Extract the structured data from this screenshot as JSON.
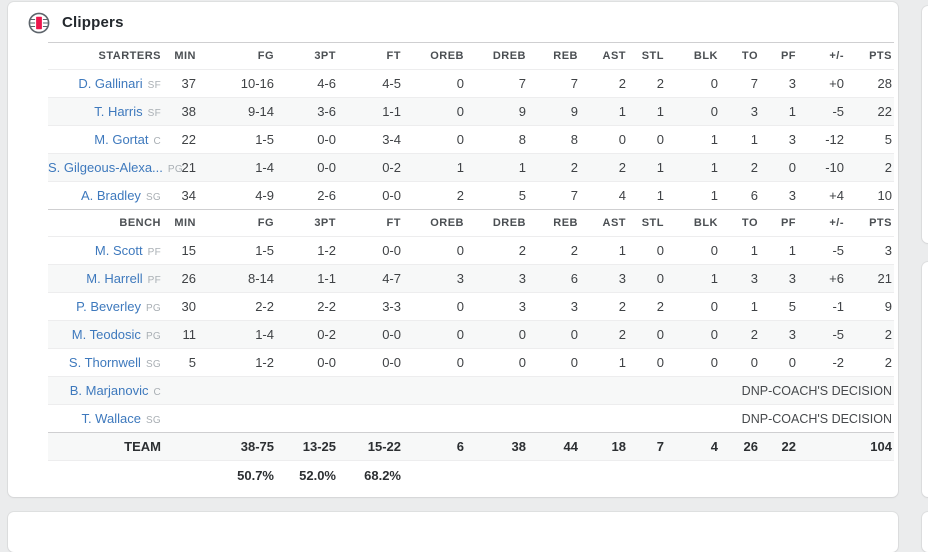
{
  "team": {
    "name": "Clippers"
  },
  "columns": [
    "MIN",
    "FG",
    "3PT",
    "FT",
    "OREB",
    "DREB",
    "REB",
    "AST",
    "STL",
    "BLK",
    "TO",
    "PF",
    "+/-",
    "PTS"
  ],
  "sections": [
    {
      "label": "STARTERS",
      "players": [
        {
          "name": "D. Gallinari",
          "pos": "SF",
          "stats": [
            "37",
            "10-16",
            "4-6",
            "4-5",
            "0",
            "7",
            "7",
            "2",
            "2",
            "0",
            "7",
            "3",
            "+0",
            "28"
          ]
        },
        {
          "name": "T. Harris",
          "pos": "SF",
          "stats": [
            "38",
            "9-14",
            "3-6",
            "1-1",
            "0",
            "9",
            "9",
            "1",
            "1",
            "0",
            "3",
            "1",
            "-5",
            "22"
          ]
        },
        {
          "name": "M. Gortat",
          "pos": "C",
          "stats": [
            "22",
            "1-5",
            "0-0",
            "3-4",
            "0",
            "8",
            "8",
            "0",
            "0",
            "1",
            "1",
            "3",
            "-12",
            "5"
          ]
        },
        {
          "name": "S. Gilgeous-Alexa...",
          "pos": "PG",
          "stats": [
            "21",
            "1-4",
            "0-0",
            "0-2",
            "1",
            "1",
            "2",
            "2",
            "1",
            "1",
            "2",
            "0",
            "-10",
            "2"
          ]
        },
        {
          "name": "A. Bradley",
          "pos": "SG",
          "stats": [
            "34",
            "4-9",
            "2-6",
            "0-0",
            "2",
            "5",
            "7",
            "4",
            "1",
            "1",
            "6",
            "3",
            "+4",
            "10"
          ]
        }
      ]
    },
    {
      "label": "BENCH",
      "players": [
        {
          "name": "M. Scott",
          "pos": "PF",
          "stats": [
            "15",
            "1-5",
            "1-2",
            "0-0",
            "0",
            "2",
            "2",
            "1",
            "0",
            "0",
            "1",
            "1",
            "-5",
            "3"
          ]
        },
        {
          "name": "M. Harrell",
          "pos": "PF",
          "stats": [
            "26",
            "8-14",
            "1-1",
            "4-7",
            "3",
            "3",
            "6",
            "3",
            "0",
            "1",
            "3",
            "3",
            "+6",
            "21"
          ]
        },
        {
          "name": "P. Beverley",
          "pos": "PG",
          "stats": [
            "30",
            "2-2",
            "2-2",
            "3-3",
            "0",
            "3",
            "3",
            "2",
            "2",
            "0",
            "1",
            "5",
            "-1",
            "9"
          ]
        },
        {
          "name": "M. Teodosic",
          "pos": "PG",
          "stats": [
            "11",
            "1-4",
            "0-2",
            "0-0",
            "0",
            "0",
            "0",
            "2",
            "0",
            "0",
            "2",
            "3",
            "-5",
            "2"
          ]
        },
        {
          "name": "S. Thornwell",
          "pos": "SG",
          "stats": [
            "5",
            "1-2",
            "0-0",
            "0-0",
            "0",
            "0",
            "0",
            "1",
            "0",
            "0",
            "0",
            "0",
            "-2",
            "2"
          ]
        },
        {
          "name": "B. Marjanovic",
          "pos": "C",
          "dnp": "DNP-COACH'S DECISION"
        },
        {
          "name": "T. Wallace",
          "pos": "SG",
          "dnp": "DNP-COACH'S DECISION"
        }
      ]
    }
  ],
  "totals": {
    "label": "TEAM",
    "stats": [
      "",
      "38-75",
      "13-25",
      "15-22",
      "6",
      "38",
      "44",
      "18",
      "7",
      "4",
      "26",
      "22",
      "",
      "104"
    ]
  },
  "percentages": {
    "stats": [
      "",
      "50.7%",
      "52.0%",
      "68.2%",
      "",
      "",
      "",
      "",
      "",
      "",
      "",
      "",
      "",
      ""
    ]
  },
  "colors": {
    "link_blue": "#3e79bd",
    "logo_red": "#ed174c",
    "stripe": "#f7f8f8"
  }
}
